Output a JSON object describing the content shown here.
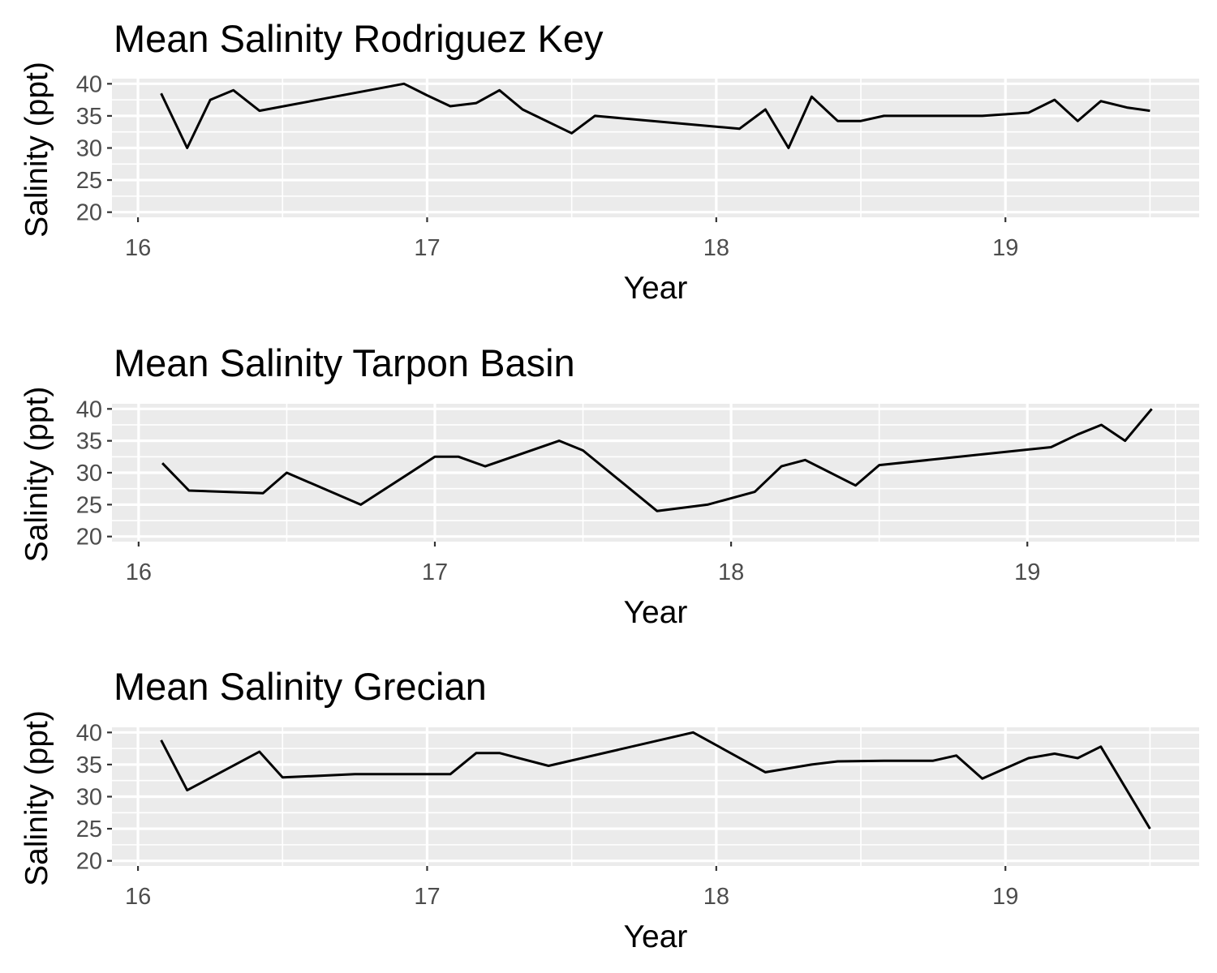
{
  "chart_data": [
    {
      "type": "line",
      "title": "Mean Salinity Rodriguez Key",
      "xlabel": "Year",
      "ylabel": "Salinity (ppt)",
      "xlim": [
        15.91,
        19.67
      ],
      "ylim": [
        19.2,
        40.8
      ],
      "xticks": [
        "16",
        "17",
        "18",
        "19"
      ],
      "yticks": [
        "20",
        "25",
        "30",
        "35",
        "40"
      ],
      "grid": true,
      "legend": "none",
      "line_color": "#000000",
      "panel_color": "#ebebeb",
      "series": [
        {
          "x": [
            16.08,
            16.17,
            16.25,
            16.33,
            16.42,
            16.92,
            17.0,
            17.08,
            17.17,
            17.25,
            17.33,
            17.5,
            17.58,
            18.08,
            18.17,
            18.25,
            18.33,
            18.42,
            18.5,
            18.58,
            18.92,
            19.08,
            19.17,
            19.25,
            19.33,
            19.42,
            19.5
          ],
          "y": [
            38.5,
            30.0,
            37.5,
            39.0,
            35.8,
            40.0,
            38.2,
            36.5,
            37.0,
            39.0,
            36.0,
            32.3,
            35.0,
            33.0,
            36.0,
            30.0,
            38.0,
            34.2,
            34.2,
            35.0,
            35.0,
            35.5,
            37.5,
            34.2,
            37.3,
            36.3,
            35.8
          ]
        }
      ]
    },
    {
      "type": "line",
      "title": "Mean Salinity Tarpon Basin",
      "xlabel": "Year",
      "ylabel": "Salinity (ppt)",
      "xlim": [
        15.91,
        19.58
      ],
      "ylim": [
        19.2,
        40.8
      ],
      "xticks": [
        "16",
        "17",
        "18",
        "19"
      ],
      "yticks": [
        "20",
        "25",
        "30",
        "35",
        "40"
      ],
      "grid": true,
      "legend": "none",
      "line_color": "#000000",
      "panel_color": "#ebebeb",
      "series": [
        {
          "x": [
            16.08,
            16.17,
            16.42,
            16.5,
            16.75,
            17.0,
            17.08,
            17.17,
            17.42,
            17.5,
            17.75,
            17.92,
            18.08,
            18.17,
            18.25,
            18.42,
            18.5,
            19.08,
            19.17,
            19.25,
            19.33,
            19.42
          ],
          "y": [
            31.5,
            27.2,
            26.8,
            30.0,
            25.0,
            32.5,
            32.5,
            31.0,
            35.0,
            33.5,
            24.0,
            25.0,
            27.0,
            31.0,
            32.0,
            28.0,
            31.2,
            34.0,
            36.0,
            37.5,
            35.0,
            40.0
          ]
        }
      ]
    },
    {
      "type": "line",
      "title": "Mean Salinity Grecian",
      "xlabel": "Year",
      "ylabel": "Salinity (ppt)",
      "xlim": [
        15.91,
        19.67
      ],
      "ylim": [
        19.2,
        40.8
      ],
      "xticks": [
        "16",
        "17",
        "18",
        "19"
      ],
      "yticks": [
        "20",
        "25",
        "30",
        "35",
        "40"
      ],
      "grid": true,
      "legend": "none",
      "line_color": "#000000",
      "panel_color": "#ebebeb",
      "series": [
        {
          "x": [
            16.08,
            16.17,
            16.42,
            16.5,
            16.75,
            17.08,
            17.17,
            17.25,
            17.42,
            17.92,
            18.17,
            18.33,
            18.42,
            18.58,
            18.75,
            18.83,
            18.92,
            19.08,
            19.17,
            19.25,
            19.33,
            19.5
          ],
          "y": [
            38.8,
            31.0,
            37.0,
            33.0,
            33.5,
            33.5,
            36.8,
            36.8,
            34.8,
            40.0,
            33.8,
            35.0,
            35.5,
            35.6,
            35.6,
            36.4,
            32.8,
            36.0,
            36.7,
            36.0,
            37.8,
            25.0
          ]
        }
      ]
    }
  ]
}
